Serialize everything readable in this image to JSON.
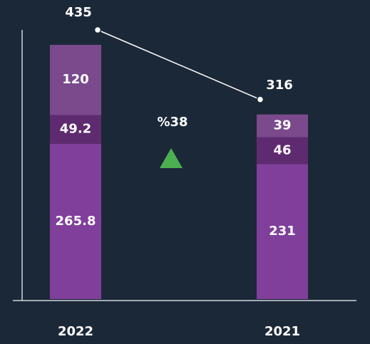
{
  "chart_data": {
    "type": "stacked-bar",
    "categories": [
      "2022",
      "2021"
    ],
    "series": [
      {
        "color": "#7f3f9b",
        "values": [
          265.8,
          231
        ]
      },
      {
        "color": "#5f2b70",
        "values": [
          49.2,
          46
        ]
      },
      {
        "color": "#7a4a8c",
        "values": [
          120,
          39
        ]
      }
    ],
    "totals": [
      435,
      316
    ],
    "totals_color": "#ffffff",
    "annotation": "%38",
    "annotation_color": "#4caf50"
  }
}
